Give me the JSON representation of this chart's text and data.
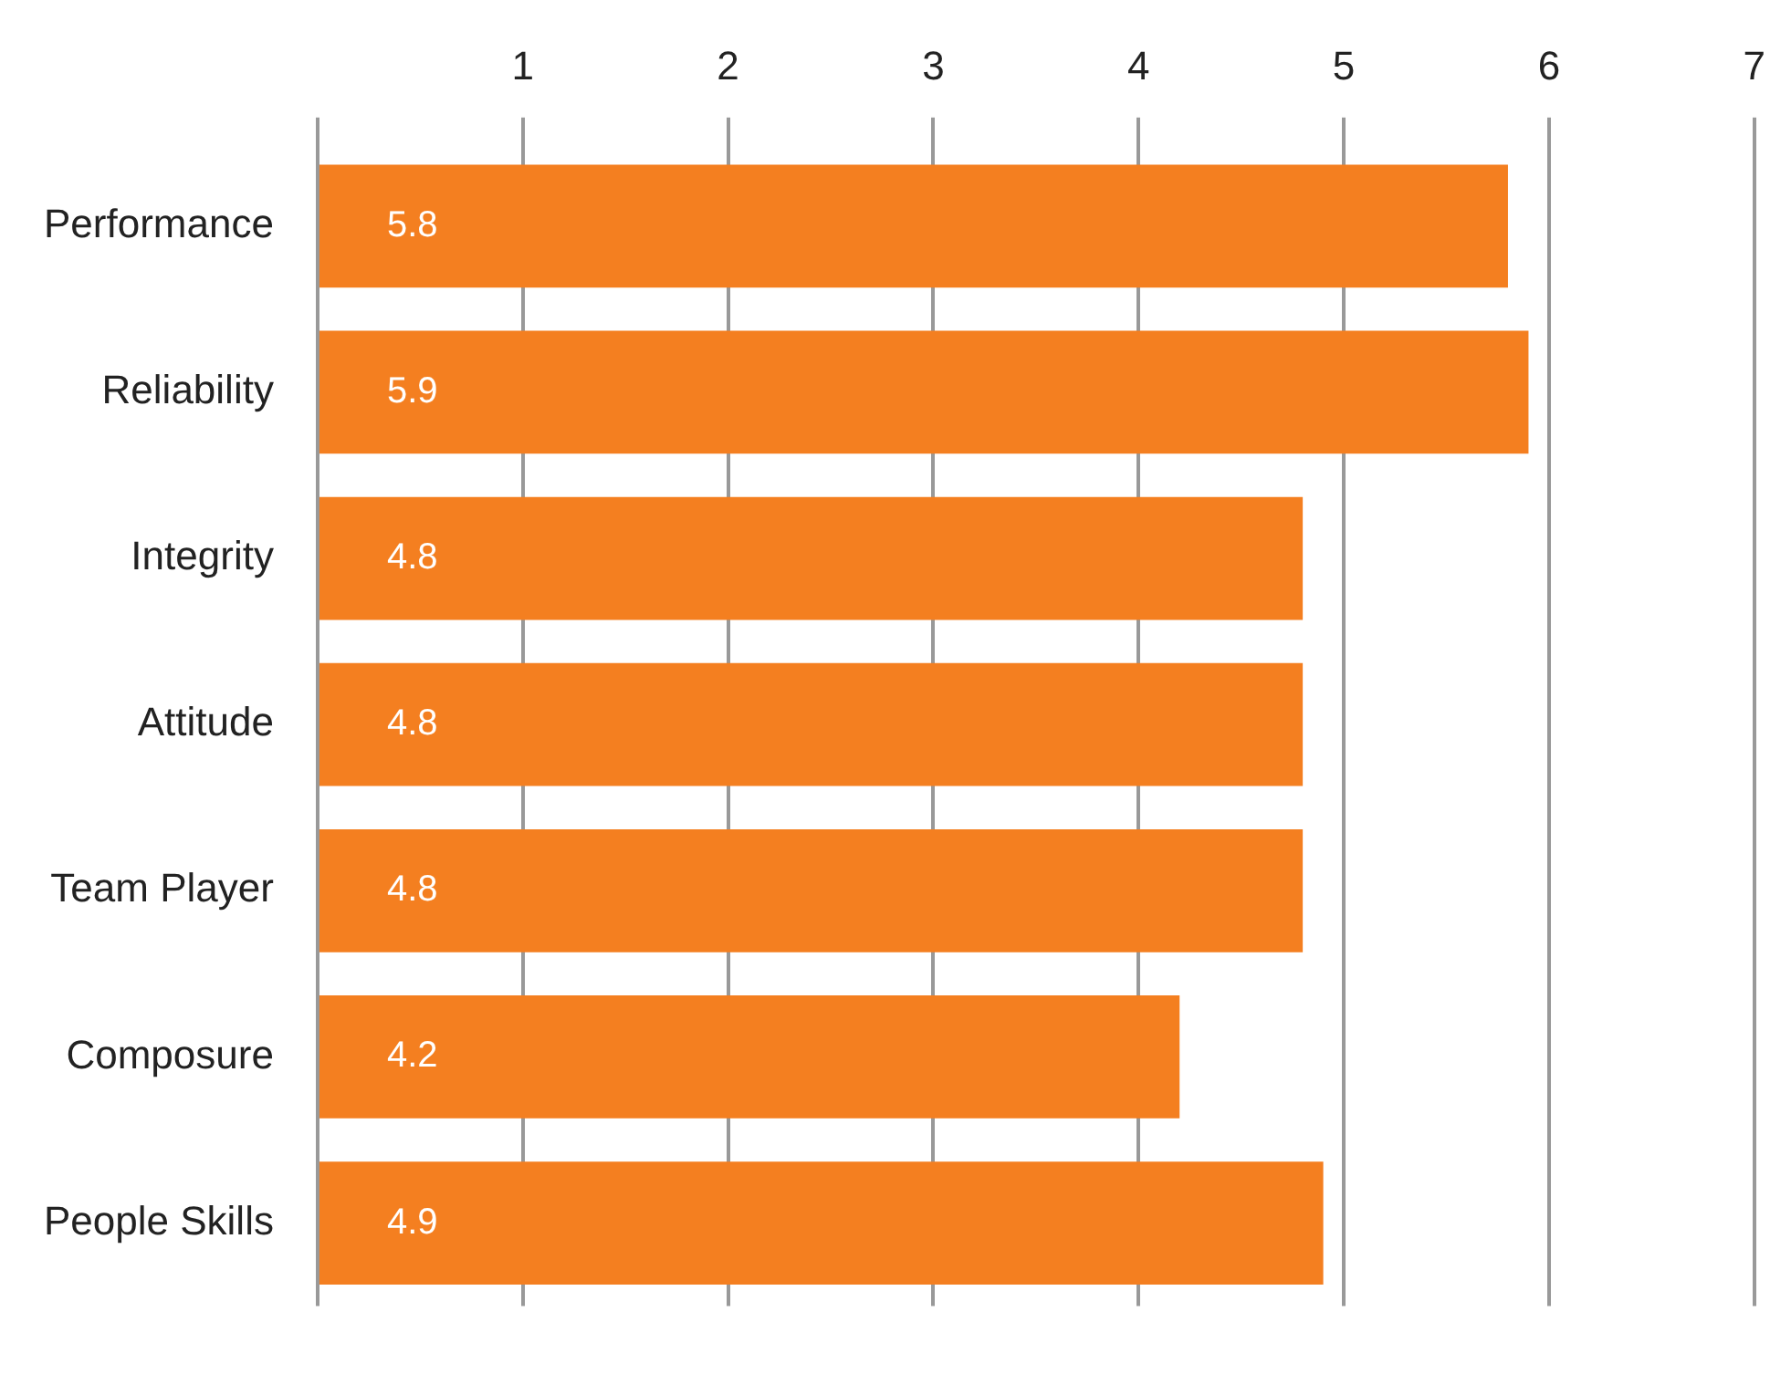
{
  "chart_data": {
    "type": "bar",
    "orientation": "horizontal",
    "categories": [
      "Performance",
      "Reliability",
      "Integrity",
      "Attitude",
      "Team Player",
      "Composure",
      "People Skills"
    ],
    "values": [
      5.8,
      5.9,
      4.8,
      4.8,
      4.8,
      4.2,
      4.9
    ],
    "color": "#f47f20",
    "xlim": [
      0,
      7
    ],
    "xticks": [
      {
        "value": 0,
        "label": null
      },
      1,
      2,
      3,
      4,
      5,
      6,
      7
    ],
    "grid": "x",
    "data_labels": true
  }
}
